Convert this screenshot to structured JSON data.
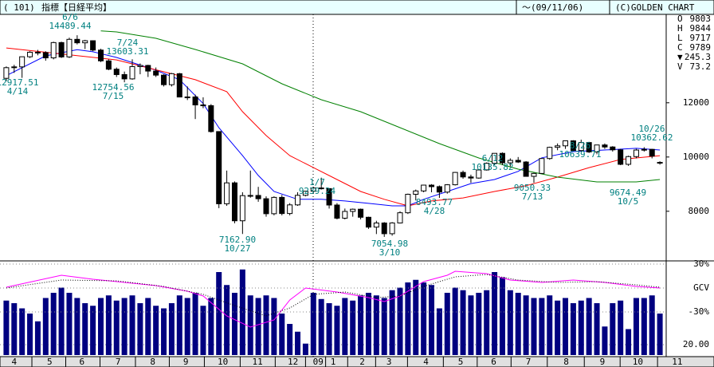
{
  "header": {
    "code": "( 101)",
    "title": "指標【日経平均】",
    "date": "～(09/11/06)",
    "copyright": "(C)GOLDEN CHART"
  },
  "quote": [
    {
      "key": "O",
      "value": 9803
    },
    {
      "key": "H",
      "value": 9844
    },
    {
      "key": "L",
      "value": 9717
    },
    {
      "key": "C",
      "value": 9789
    },
    {
      "key": "▼",
      "value": 245.3
    },
    {
      "key": "V",
      "value": 73.2
    }
  ],
  "chart_data": {
    "type": "candlestick",
    "ylim": [
      6200,
      15200
    ],
    "yticks": [
      8000,
      10000,
      12000
    ],
    "xlim": [
      -0.8,
      83.8
    ],
    "xticks": [
      {
        "value": 1.0,
        "label": "4"
      },
      {
        "value": 5.5,
        "label": "5"
      },
      {
        "value": 9.6,
        "label": "6"
      },
      {
        "value": 14.2,
        "label": "7"
      },
      {
        "value": 18.6,
        "label": "8"
      },
      {
        "value": 22.8,
        "label": "9"
      },
      {
        "value": 27.5,
        "label": "10"
      },
      {
        "value": 31.9,
        "label": "11"
      },
      {
        "value": 36.4,
        "label": "12"
      },
      {
        "value": 39.6,
        "label": "09"
      },
      {
        "value": 41.5,
        "label": "1"
      },
      {
        "value": 45.2,
        "label": "2"
      },
      {
        "value": 48.6,
        "label": "3"
      },
      {
        "value": 53.3,
        "label": "4"
      },
      {
        "value": 57.7,
        "label": "5"
      },
      {
        "value": 61.9,
        "label": "6"
      },
      {
        "value": 66.3,
        "label": "7"
      },
      {
        "value": 71.1,
        "label": "8"
      },
      {
        "value": 75.7,
        "label": "9"
      },
      {
        "value": 80.2,
        "label": "10"
      },
      {
        "value": 85.2,
        "label": "11"
      }
    ],
    "up_color": "#ffffff",
    "down_color": "#000000",
    "candles": [
      [
        12900,
        13340,
        12800,
        13294
      ],
      [
        13294,
        13400,
        13100,
        13323
      ],
      [
        13323,
        13700,
        12918,
        13696
      ],
      [
        13696,
        13900,
        13650,
        13863
      ],
      [
        13863,
        13950,
        13750,
        13849
      ],
      [
        13849,
        13900,
        13550,
        13655
      ],
      [
        13655,
        14250,
        13600,
        14219
      ],
      [
        14219,
        14250,
        13650,
        13690
      ],
      [
        13690,
        14400,
        13650,
        14338
      ],
      [
        14338,
        14489,
        14150,
        14210
      ],
      [
        14210,
        14320,
        13980,
        14287
      ],
      [
        14287,
        14300,
        13900,
        13942
      ],
      [
        13942,
        13990,
        13500,
        13544
      ],
      [
        13544,
        13600,
        13200,
        13237
      ],
      [
        13237,
        13300,
        12950,
        13039
      ],
      [
        13039,
        13150,
        12755,
        12880
      ],
      [
        12880,
        13603,
        12850,
        13334
      ],
      [
        13334,
        13450,
        13050,
        13376
      ],
      [
        13376,
        13400,
        12950,
        13168
      ],
      [
        13168,
        13300,
        12950,
        13019
      ],
      [
        13019,
        13050,
        12600,
        12666
      ],
      [
        12666,
        13100,
        12600,
        13072
      ],
      [
        13072,
        13100,
        12200,
        12212
      ],
      [
        12212,
        12600,
        12100,
        12214
      ],
      [
        12214,
        12300,
        11400,
        11920
      ],
      [
        11920,
        12200,
        11800,
        11893
      ],
      [
        11893,
        11950,
        10900,
        10938
      ],
      [
        10938,
        10950,
        8115,
        8276
      ],
      [
        8276,
        9500,
        8200,
        9047
      ],
      [
        9047,
        9100,
        7557,
        7649
      ],
      [
        7649,
        8700,
        7163,
        8576
      ],
      [
        8576,
        9500,
        8500,
        8583
      ],
      [
        8583,
        8900,
        8350,
        8462
      ],
      [
        8462,
        8550,
        7800,
        7910
      ],
      [
        7910,
        8550,
        7850,
        8512
      ],
      [
        8512,
        8600,
        7850,
        7917
      ],
      [
        7917,
        8300,
        7850,
        8235
      ],
      [
        8235,
        8700,
        8200,
        8588
      ],
      [
        8588,
        8750,
        8550,
        8739
      ],
      [
        8739,
        8900,
        8650,
        8859
      ],
      [
        8859,
        9239,
        8800,
        8836
      ],
      [
        8836,
        8850,
        8100,
        8230
      ],
      [
        8230,
        8300,
        7700,
        7745
      ],
      [
        7745,
        8100,
        7700,
        7994
      ],
      [
        7994,
        8100,
        7800,
        8076
      ],
      [
        8076,
        8100,
        7700,
        7779
      ],
      [
        7779,
        7800,
        7350,
        7416
      ],
      [
        7416,
        7650,
        7160,
        7568
      ],
      [
        7568,
        7600,
        7055,
        7173
      ],
      [
        7173,
        7600,
        7100,
        7569
      ],
      [
        7569,
        8000,
        7550,
        7945
      ],
      [
        7945,
        8650,
        7900,
        8626
      ],
      [
        8626,
        8800,
        8400,
        8749
      ],
      [
        8749,
        8980,
        8700,
        8964
      ],
      [
        8964,
        9000,
        8700,
        8907
      ],
      [
        8907,
        8950,
        8494,
        8707
      ],
      [
        8707,
        9000,
        8650,
        8977
      ],
      [
        8977,
        9450,
        8950,
        9432
      ],
      [
        9432,
        9500,
        9200,
        9265
      ],
      [
        9265,
        9350,
        9050,
        9225
      ],
      [
        9225,
        9550,
        9200,
        9523
      ],
      [
        9523,
        9800,
        9500,
        9768
      ],
      [
        9768,
        10136,
        9700,
        10135
      ],
      [
        10135,
        10170,
        9700,
        9786
      ],
      [
        9786,
        9950,
        9650,
        9877
      ],
      [
        9877,
        10000,
        9780,
        9816
      ],
      [
        9816,
        9850,
        9280,
        9287
      ],
      [
        9287,
        9420,
        9050,
        9395
      ],
      [
        9395,
        9950,
        9380,
        9944
      ],
      [
        9944,
        10380,
        9900,
        10357
      ],
      [
        10357,
        10500,
        10250,
        10412
      ],
      [
        10412,
        10600,
        10300,
        10597
      ],
      [
        10597,
        10620,
        10200,
        10238
      ],
      [
        10238,
        10640,
        10200,
        10534
      ],
      [
        10534,
        10560,
        10150,
        10187
      ],
      [
        10187,
        10450,
        10100,
        10444
      ],
      [
        10444,
        10500,
        10300,
        10370
      ],
      [
        10370,
        10400,
        10200,
        10265
      ],
      [
        10265,
        10300,
        9700,
        9731
      ],
      [
        9731,
        10050,
        9674,
        10016
      ],
      [
        10016,
        10300,
        9950,
        10257
      ],
      [
        10257,
        10363,
        10200,
        10282
      ],
      [
        10282,
        10300,
        9950,
        10034
      ],
      [
        9803,
        9844,
        9717,
        9789
      ]
    ],
    "lines": [
      {
        "color": "#0000ff",
        "x": [
          0,
          5,
          9,
          11,
          14,
          19,
          22,
          25,
          27,
          30,
          32,
          34,
          37,
          40,
          43,
          46,
          49,
          51,
          53,
          56,
          59,
          62,
          65,
          68,
          72,
          76,
          80,
          83
        ],
        "values": [
          13000,
          13730,
          13960,
          13880,
          13670,
          13200,
          12850,
          11970,
          11080,
          10050,
          9320,
          8730,
          8440,
          8440,
          8380,
          8290,
          8200,
          8200,
          8440,
          8730,
          9020,
          9170,
          9470,
          9970,
          10200,
          10260,
          10320,
          10260
        ]
      },
      {
        "color": "#ff0000",
        "x": [
          0,
          14,
          24,
          28,
          30,
          33,
          36,
          39,
          42,
          45,
          48,
          51,
          54,
          58,
          62,
          66,
          70,
          74,
          78,
          83
        ],
        "values": [
          14020,
          13580,
          12850,
          12410,
          11670,
          10790,
          10050,
          9610,
          9170,
          8730,
          8440,
          8200,
          8380,
          8490,
          8730,
          8940,
          9260,
          9610,
          9910,
          10050
        ]
      },
      {
        "color": "#008000",
        "x": [
          12,
          14,
          19,
          24,
          30,
          35,
          40,
          45,
          50,
          55,
          60,
          65,
          70,
          75,
          80,
          83
        ],
        "values": [
          14650,
          14612,
          14376,
          13965,
          13435,
          12700,
          12112,
          11671,
          11083,
          10494,
          9965,
          9553,
          9259,
          9082,
          9082,
          9171
        ]
      }
    ],
    "annotations": [
      {
        "price": "12917.51",
        "date": "4/14"
      },
      {
        "price": "14489.44",
        "date": "6/6"
      },
      {
        "price": "13603.31",
        "date": "7/24"
      },
      {
        "price": "12754.56",
        "date": "7/15"
      },
      {
        "price": "7162.90",
        "date": "10/27"
      },
      {
        "price": "9239.24",
        "date": "1/7"
      },
      {
        "price": "7054.98",
        "date": "3/10"
      },
      {
        "price": "8493.77",
        "date": "4/28"
      },
      {
        "price": "10135.82",
        "date": "6/12"
      },
      {
        "price": "9050.33",
        "date": "7/13"
      },
      {
        "price": "10639.71",
        "date": "8/26"
      },
      {
        "price": "9674.49",
        "date": "10/5"
      },
      {
        "price": "10362.62",
        "date": "10/26"
      }
    ],
    "volume": {
      "color": "#000080",
      "ylim": [
        0,
        180
      ],
      "yticks": [
        {
          "value": 20,
          "label": "20.00"
        }
      ],
      "values": [
        105,
        100,
        90,
        80,
        65,
        110,
        120,
        130,
        120,
        110,
        100,
        95,
        110,
        115,
        105,
        110,
        115,
        100,
        110,
        95,
        90,
        100,
        115,
        110,
        120,
        95,
        110,
        160,
        135,
        120,
        165,
        115,
        110,
        115,
        110,
        80,
        60,
        45,
        22,
        120,
        108,
        100,
        95,
        110,
        105,
        115,
        120,
        115,
        110,
        125,
        130,
        140,
        145,
        140,
        135,
        90,
        120,
        130,
        125,
        115,
        120,
        125,
        160,
        150,
        125,
        120,
        115,
        110,
        110,
        115,
        105,
        110,
        100,
        105,
        110,
        100,
        55,
        100,
        105,
        50,
        110,
        110,
        115,
        80
      ]
    },
    "oscillator": {
      "ylim": [
        -84,
        33
      ],
      "yticks": [
        {
          "value": 30,
          "label": "30%"
        },
        {
          "value": 0,
          "label": "GCV"
        },
        {
          "value": -30,
          "label": "-30%"
        }
      ],
      "series": [
        {
          "color": "#ff00ff",
          "style": "solid",
          "x": [
            0,
            7,
            11,
            19,
            23,
            25,
            28,
            31,
            34,
            36,
            38,
            42,
            46,
            48,
            50,
            53,
            56,
            57,
            61,
            64,
            68,
            72,
            76,
            80,
            83
          ],
          "values": [
            1,
            16,
            11,
            3,
            -4,
            -10,
            -35,
            -49,
            -40,
            -15,
            0,
            -5,
            -12,
            -17,
            -10,
            8,
            16,
            21,
            18,
            10,
            7,
            10,
            7,
            2,
            0
          ]
        },
        {
          "color": "#000000",
          "style": "dotted",
          "x": [
            0,
            7,
            14,
            20,
            25,
            29,
            33,
            36,
            39,
            43,
            47,
            50,
            53,
            57,
            61,
            65,
            70,
            75,
            80,
            83
          ],
          "values": [
            0,
            10,
            9,
            2,
            -8,
            -22,
            -35,
            -25,
            -8,
            -5,
            -12,
            -10,
            2,
            14,
            17,
            10,
            7,
            8,
            4,
            1
          ]
        }
      ]
    }
  }
}
